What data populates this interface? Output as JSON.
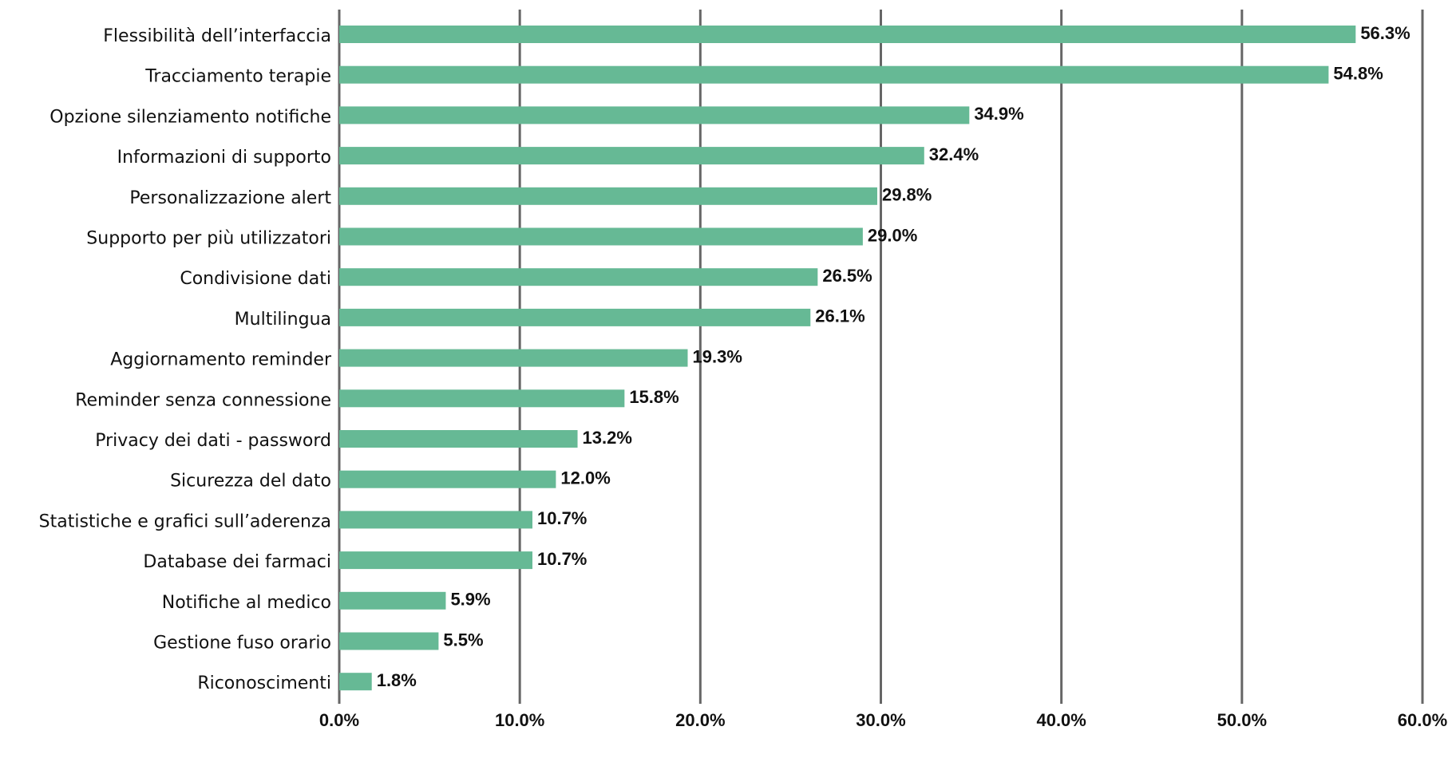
{
  "chart_data": {
    "type": "bar",
    "orientation": "horizontal",
    "title": "",
    "xlabel": "",
    "ylabel": "",
    "xlim": [
      0,
      60
    ],
    "x_ticks": [
      0,
      10,
      20,
      30,
      40,
      50,
      60
    ],
    "x_tick_labels": [
      "0.0%",
      "10.0%",
      "20.0%",
      "30.0%",
      "40.0%",
      "50.0%",
      "60.0%"
    ],
    "grid": "vertical",
    "legend": "none",
    "categories": [
      "Flessibilità dell’interfaccia",
      "Tracciamento terapie",
      "Opzione silenziamento notifiche",
      "Informazioni di supporto",
      "Personalizzazione alert",
      "Supporto per più utilizzatori",
      "Condivisione dati",
      "Multilingua",
      "Aggiornamento reminder",
      "Reminder senza connessione",
      "Privacy dei dati - password",
      "Sicurezza del dato",
      "Statistiche e grafici sull’aderenza",
      "Database dei farmaci",
      "Notifiche al medico",
      "Gestione fuso orario",
      "Riconoscimenti"
    ],
    "values": [
      56.3,
      54.8,
      34.9,
      32.4,
      29.8,
      29.0,
      26.5,
      26.1,
      19.3,
      15.8,
      13.2,
      12.0,
      10.7,
      10.7,
      5.9,
      5.5,
      1.8
    ],
    "data_labels": [
      "56.3%",
      "54.8%",
      "34.9%",
      "32.4%",
      "29.8%",
      "29.0%",
      "26.5%",
      "26.1%",
      "19.3%",
      "15.8%",
      "13.2%",
      "12.0%",
      "10.7%",
      "10.7%",
      "5.9%",
      "5.5%",
      "1.8%"
    ],
    "colors": {
      "bar": "#66b995",
      "grid": "#666666",
      "text": "#111111"
    }
  }
}
